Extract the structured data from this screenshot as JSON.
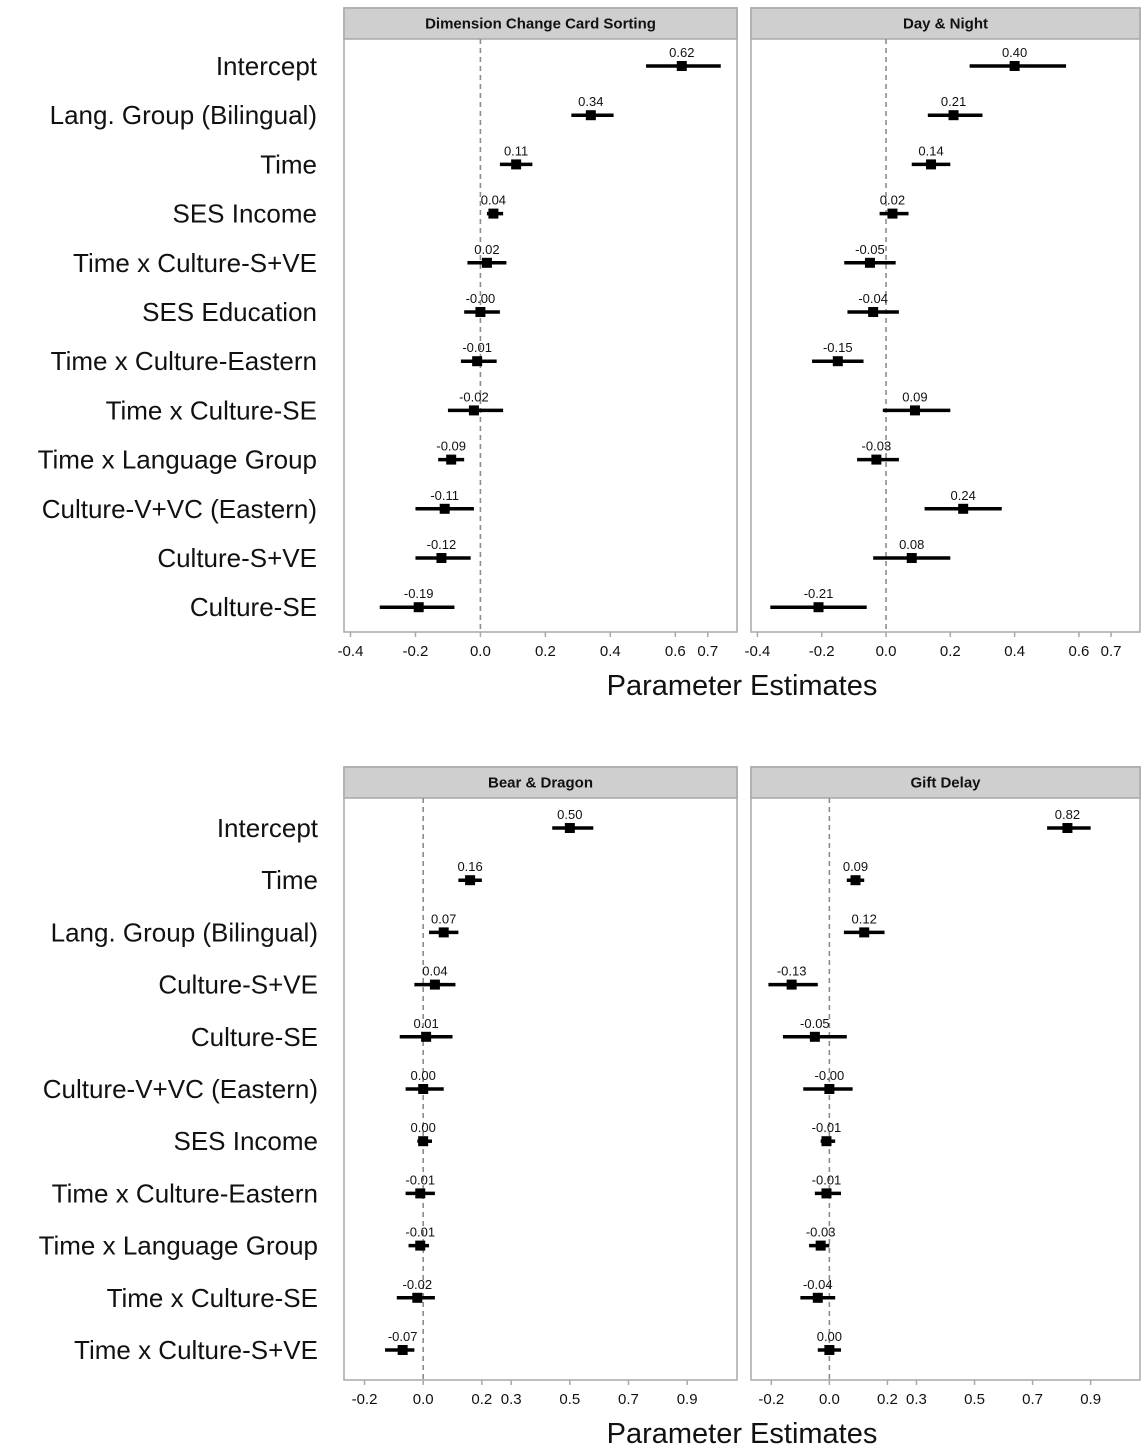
{
  "chart_data": [
    {
      "type": "forest",
      "panels": [
        {
          "title": "Dimension Change Card Sorting",
          "terms": [
            "Intercept",
            "Lang. Group (Bilingual)",
            "Time",
            "SES Income",
            "Time x Culture-S+VE",
            "SES Education",
            "Time x Culture-Eastern",
            "Time x Culture-SE",
            "Time x Language Group",
            "Culture-V+VC (Eastern)",
            "Culture-S+VE",
            "Culture-SE"
          ],
          "estimates": [
            0.62,
            0.34,
            0.11,
            0.04,
            0.02,
            0.0,
            -0.01,
            -0.02,
            -0.09,
            -0.11,
            -0.12,
            -0.19
          ],
          "estimate_labels": [
            "0.62",
            "0.34",
            "0.11",
            "0.04",
            "0.02",
            "-0.00",
            "-0.01",
            "-0.02",
            "-0.09",
            "-0.11",
            "-0.12",
            "-0.19"
          ],
          "ci_low": [
            0.51,
            0.28,
            0.06,
            0.02,
            -0.04,
            -0.05,
            -0.06,
            -0.1,
            -0.13,
            -0.2,
            -0.2,
            -0.31
          ],
          "ci_high": [
            0.74,
            0.41,
            0.16,
            0.07,
            0.08,
            0.06,
            0.05,
            0.07,
            -0.05,
            -0.02,
            -0.03,
            -0.08
          ]
        },
        {
          "title": "Day & Night",
          "terms": [
            "Intercept",
            "Lang. Group (Bilingual)",
            "Time",
            "SES Income",
            "Time x Culture-S+VE",
            "SES Education",
            "Time x Culture-Eastern",
            "Time x Culture-SE",
            "Time x Language Group",
            "Culture-V+VC (Eastern)",
            "Culture-S+VE",
            "Culture-SE"
          ],
          "estimates": [
            0.4,
            0.21,
            0.14,
            0.02,
            -0.05,
            -0.04,
            -0.15,
            0.09,
            -0.03,
            0.24,
            0.08,
            -0.21
          ],
          "estimate_labels": [
            "0.40",
            "0.21",
            "0.14",
            "0.02",
            "-0.05",
            "-0.04",
            "-0.15",
            "0.09",
            "-0.03",
            "0.24",
            "0.08",
            "-0.21"
          ],
          "ci_low": [
            0.26,
            0.13,
            0.08,
            -0.02,
            -0.13,
            -0.12,
            -0.23,
            -0.01,
            -0.09,
            0.12,
            -0.04,
            -0.36
          ],
          "ci_high": [
            0.56,
            0.3,
            0.2,
            0.07,
            0.03,
            0.04,
            -0.07,
            0.2,
            0.04,
            0.36,
            0.2,
            -0.06
          ]
        }
      ],
      "x_ticks": [
        -0.4,
        -0.2,
        0.0,
        0.2,
        0.4,
        0.6,
        0.7
      ],
      "x_tick_labels": [
        "-0.4",
        "-0.2",
        "0.0",
        "0.2",
        "0.4",
        "0.6",
        "0.7"
      ],
      "xlim": [
        -0.42,
        0.79
      ],
      "xlabel": "Parameter Estimates",
      "reference_line": 0
    },
    {
      "type": "forest",
      "panels": [
        {
          "title": "Bear & Dragon",
          "terms": [
            "Intercept",
            "Time",
            "Lang. Group (Bilingual)",
            "Culture-S+VE",
            "Culture-SE",
            "Culture-V+VC (Eastern)",
            "SES Income",
            "Time x Culture-Eastern",
            "Time x Language Group",
            "Time x Culture-SE",
            "Time x Culture-S+VE"
          ],
          "estimates": [
            0.5,
            0.16,
            0.07,
            0.04,
            0.01,
            0.0,
            0.0,
            -0.01,
            -0.01,
            -0.02,
            -0.07
          ],
          "estimate_labels": [
            "0.50",
            "0.16",
            "0.07",
            "0.04",
            "0.01",
            "0.00",
            "0.00",
            "-0.01",
            "-0.01",
            "-0.02",
            "-0.07"
          ],
          "ci_low": [
            0.44,
            0.12,
            0.02,
            -0.03,
            -0.08,
            -0.06,
            -0.02,
            -0.06,
            -0.05,
            -0.09,
            -0.13
          ],
          "ci_high": [
            0.58,
            0.2,
            0.12,
            0.11,
            0.1,
            0.07,
            0.03,
            0.04,
            0.02,
            0.04,
            -0.03
          ]
        },
        {
          "title": "Gift Delay",
          "terms": [
            "Intercept",
            "Time",
            "Lang. Group (Bilingual)",
            "Culture-S+VE",
            "Culture-SE",
            "Culture-V+VC (Eastern)",
            "SES Income",
            "Time x Culture-Eastern",
            "Time x Language Group",
            "Time x Culture-SE",
            "Time x Culture-S+VE"
          ],
          "estimates": [
            0.82,
            0.09,
            0.12,
            -0.13,
            -0.05,
            -0.0,
            -0.01,
            -0.01,
            -0.03,
            -0.04,
            0.0
          ],
          "estimate_labels": [
            "0.82",
            "0.09",
            "0.12",
            "-0.13",
            "-0.05",
            "-0.00",
            "-0.01",
            "-0.01",
            "-0.03",
            "-0.04",
            "0.00"
          ],
          "ci_low": [
            0.75,
            0.06,
            0.05,
            -0.21,
            -0.16,
            -0.09,
            -0.03,
            -0.05,
            -0.07,
            -0.1,
            -0.04
          ],
          "ci_high": [
            0.9,
            0.12,
            0.19,
            -0.04,
            0.06,
            0.08,
            0.02,
            0.04,
            0.0,
            0.02,
            0.04
          ]
        }
      ],
      "x_ticks": [
        -0.2,
        0.0,
        0.2,
        0.3,
        0.5,
        0.7,
        0.9
      ],
      "x_tick_labels": [
        "-0.2",
        "0.0",
        "0.2",
        "0.3",
        "0.5",
        "0.7",
        "0.9"
      ],
      "xlim": [
        -0.27,
        1.07
      ],
      "xlabel": "Parameter Estimates",
      "reference_line": 0
    }
  ],
  "colors": {
    "strip_fill": "#cfcfcf",
    "panel_border": "#a8a8a8",
    "mark": "#000000",
    "reference_line": "#8c8c8c",
    "text": "#111111"
  }
}
